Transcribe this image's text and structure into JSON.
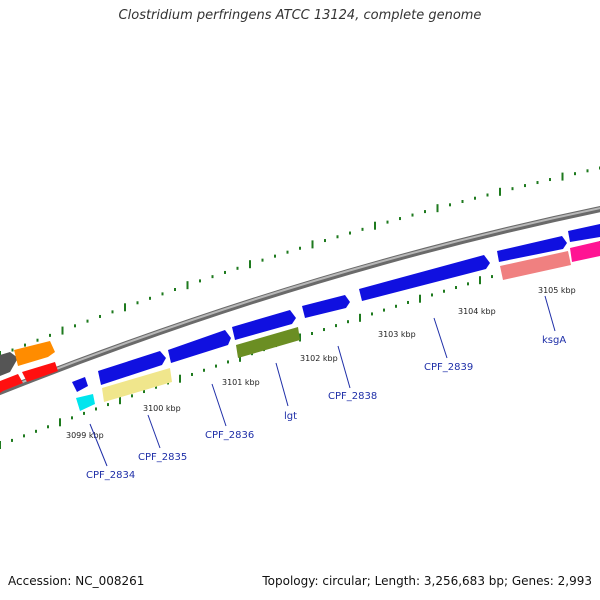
{
  "title": "Clostridium perfringens ATCC 13124, complete genome",
  "footer": {
    "accession": "Accession: NC_008261",
    "summary": "Topology: circular; Length: 3,256,683 bp; Genes: 2,993"
  },
  "scale_unit": "kbp",
  "ticks": [
    {
      "kbp": 3099,
      "label": "3099 kbp"
    },
    {
      "kbp": 3100,
      "label": "3100 kbp"
    },
    {
      "kbp": 3101,
      "label": "3101 kbp"
    },
    {
      "kbp": 3102,
      "label": "3102 kbp"
    },
    {
      "kbp": 3103,
      "label": "3103 kbp"
    },
    {
      "kbp": 3104,
      "label": "3104 kbp"
    },
    {
      "kbp": 3105,
      "label": "3105 kbp"
    }
  ],
  "genes": [
    {
      "name": "CPF_2834",
      "color": "#00e5ee",
      "label_color": "#1f2fa8"
    },
    {
      "name": "CPF_2835",
      "color": "#f0e68c",
      "label_color": "#1f2fa8"
    },
    {
      "name": "CPF_2836",
      "color": "#1010e0",
      "label_color": "#1f2fa8"
    },
    {
      "name": "lgt",
      "color": "#6b8e23",
      "label_color": "#1f2fa8"
    },
    {
      "name": "CPF_2838",
      "color": "#1010e0",
      "label_color": "#1f2fa8"
    },
    {
      "name": "CPF_2839",
      "color": "#1010e0",
      "label_color": "#1f2fa8"
    },
    {
      "name": "ksgA",
      "color": "#f08080",
      "label_color": "#1f2fa8"
    }
  ],
  "colors": {
    "backbone": "#8c8c8c",
    "tick_marks": "#1e7a1e",
    "forward_gene": "#1010e0",
    "orange_feature": "#ff8c00",
    "red_feature": "#ff1010",
    "pink_feature": "#ff1493",
    "gray_feature": "#555555"
  }
}
